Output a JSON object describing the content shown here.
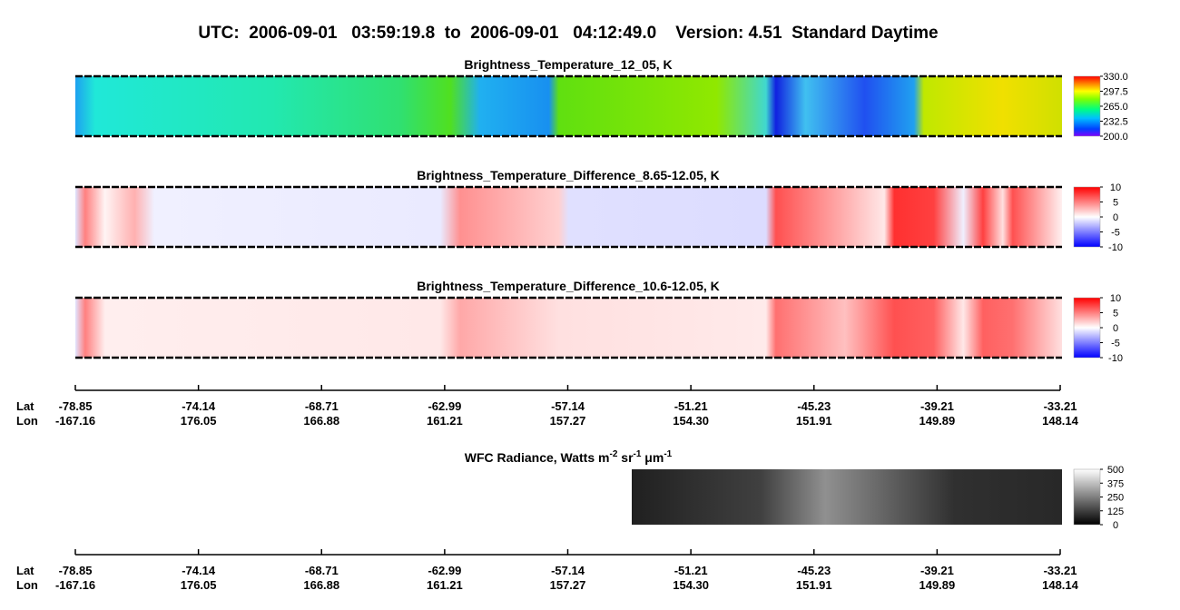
{
  "title": "UTC:  2006-09-01   03:59:19.8  to  2006-09-01   04:12:49.0    Version: 4.51  Standard Daytime",
  "panels": [
    {
      "title": "Brightness_Temperature_12_05, K",
      "colorbar": {
        "lim": [
          200,
          330
        ],
        "ticks": [
          {
            "value": 200,
            "label": "200.0"
          },
          {
            "value": 232.5,
            "label": "232.5"
          },
          {
            "value": 265,
            "label": "265.0"
          },
          {
            "value": 297.5,
            "label": "297.5"
          },
          {
            "value": 330,
            "label": "330.0"
          }
        ]
      }
    },
    {
      "title": "Brightness_Temperature_Difference_8.65-12.05, K",
      "colorbar": {
        "lim": [
          -10,
          10
        ],
        "ticks": [
          -10,
          -5,
          0,
          5,
          10
        ]
      }
    },
    {
      "title": "Brightness_Temperature_Difference_10.6-12.05, K",
      "colorbar": {
        "lim": [
          -10,
          10
        ],
        "ticks": [
          -10,
          -5,
          0,
          5,
          10
        ]
      }
    }
  ],
  "wfc": {
    "title_parts": [
      "WFC Radiance, Watts m",
      "-2",
      " sr",
      "-1",
      " μm",
      "-1"
    ],
    "colorbar": {
      "lim": [
        0,
        500
      ],
      "ticks": [
        0,
        125,
        250,
        375,
        500
      ]
    }
  },
  "axes": [
    {
      "lat_label": "Lat",
      "lon_label": "Lon",
      "lat": [
        -78.85,
        -74.14,
        -68.71,
        -62.99,
        -57.14,
        -51.21,
        -45.23,
        -39.21,
        -33.21
      ],
      "lon": [
        -167.16,
        176.05,
        166.88,
        161.21,
        157.27,
        {
          "value": 154.3,
          "label": "154.30"
        },
        151.91,
        149.89,
        148.14
      ]
    },
    {
      "lat_label": "Lat",
      "lon_label": "Lon",
      "lat": [
        -78.85,
        -74.14,
        -68.71,
        -62.99,
        -57.14,
        -51.21,
        -45.23,
        -39.21,
        -33.21
      ],
      "lon": [
        -167.16,
        176.05,
        166.88,
        161.21,
        157.27,
        {
          "value": 154.3,
          "label": "154.30"
        },
        151.91,
        149.89,
        148.14
      ]
    }
  ]
}
